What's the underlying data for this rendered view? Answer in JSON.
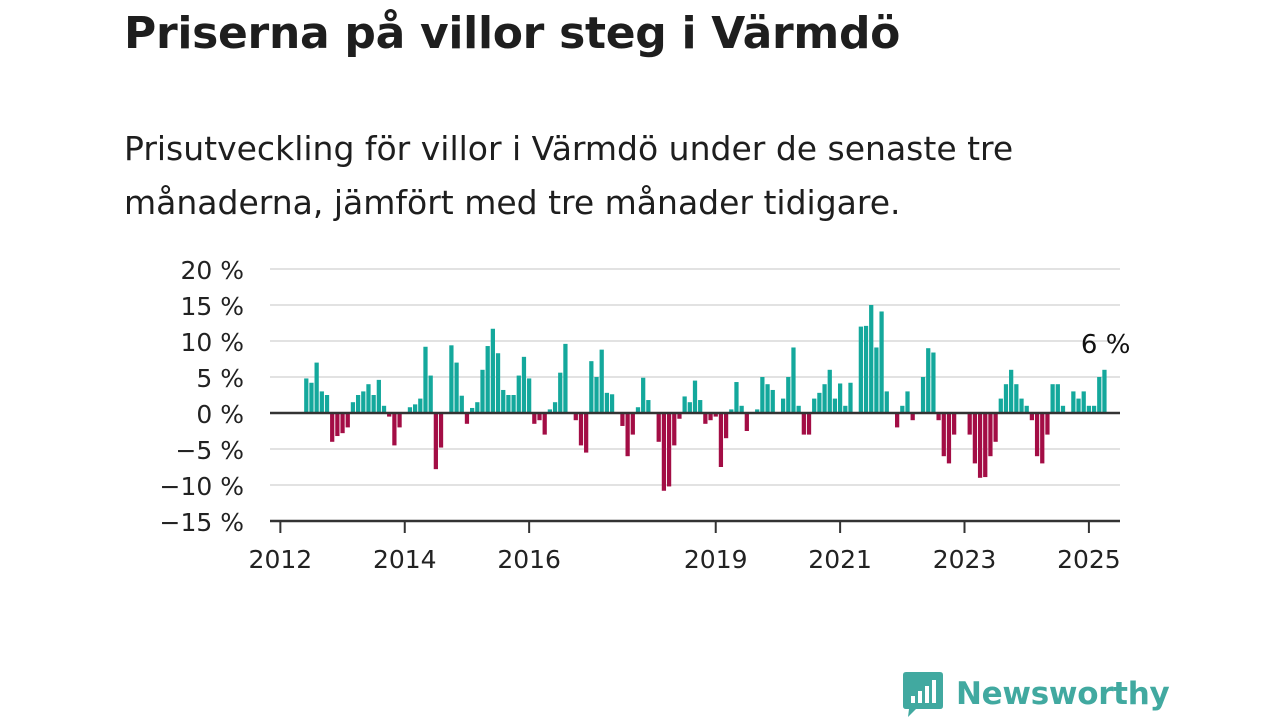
{
  "title": "Priserna på villor steg i Värmdö",
  "subtitle": "Prisutveckling för villor i Värmdö under de senaste tre månaderna, jämfört med tre månader tidigare.",
  "brand": {
    "name": "Newsworthy",
    "color": "#41a9a0",
    "logo_icon": "bar-chart-speech-bubble-icon"
  },
  "colors": {
    "positive": "#14a89c",
    "negative": "#a30d45",
    "grid": "#d9d9d9",
    "axis": "#333333"
  },
  "chart_data": {
    "type": "bar",
    "x_start": "2012-06",
    "x_step": "month",
    "xlim": [
      "2011-11",
      "2025-07"
    ],
    "ylim": [
      -15,
      20
    ],
    "y_ticks": [
      20,
      15,
      10,
      5,
      0,
      -5,
      -10,
      -15
    ],
    "y_tick_labels": [
      "20 %",
      "15 %",
      "10 %",
      "5 %",
      "0 %",
      "−5 %",
      "−10 %",
      "−15 %"
    ],
    "x_ticks": [
      "2012-01",
      "2014-01",
      "2016-01",
      "2019-01",
      "2021-01",
      "2023-01",
      "2025-01"
    ],
    "x_tick_labels": [
      "2012",
      "2014",
      "2016",
      "2019",
      "2021",
      "2023",
      "2025"
    ],
    "grid": true,
    "unit": "%",
    "values": [
      4.8,
      4.2,
      7.0,
      3.0,
      2.5,
      -4.0,
      -3.2,
      -2.8,
      -2.0,
      1.5,
      2.5,
      3.0,
      4.0,
      2.5,
      4.6,
      1.0,
      -0.5,
      -4.5,
      -2.0,
      0.0,
      0.8,
      1.2,
      2.0,
      9.2,
      5.2,
      -7.8,
      -4.8,
      0.0,
      9.4,
      7.0,
      2.4,
      -1.5,
      0.7,
      1.5,
      6.0,
      9.3,
      11.7,
      8.3,
      3.2,
      2.5,
      2.5,
      5.2,
      7.8,
      4.8,
      -1.5,
      -1.0,
      -3.0,
      0.5,
      1.5,
      5.6,
      9.6,
      0.0,
      -1.0,
      -4.5,
      -5.5,
      7.2,
      5.0,
      8.8,
      2.8,
      2.6,
      0.0,
      -1.8,
      -6.0,
      -3.0,
      0.8,
      4.9,
      1.8,
      0.0,
      -4.0,
      -10.8,
      -10.2,
      -4.5,
      -0.8,
      2.3,
      1.5,
      4.5,
      1.8,
      -1.5,
      -1.0,
      -0.5,
      -7.5,
      -3.5,
      0.5,
      4.3,
      1.0,
      -2.5,
      0.0,
      0.5,
      5.0,
      4.0,
      3.2,
      0.0,
      2.0,
      5.0,
      9.1,
      1.0,
      -3.0,
      -3.0,
      2.0,
      2.8,
      4.0,
      6.0,
      2.0,
      4.1,
      1.0,
      4.2,
      0.0,
      12.0,
      12.1,
      15.0,
      9.1,
      14.1,
      3.0,
      0.0,
      -2.0,
      1.0,
      3.0,
      -1.0,
      0.0,
      5.0,
      9.0,
      8.4,
      -1.0,
      -6.0,
      -7.0,
      -3.0,
      0.0,
      0.0,
      -3.0,
      -7.0,
      -9.0,
      -8.9,
      -6.0,
      -4.0,
      2.0,
      4.0,
      6.0,
      4.0,
      2.0,
      1.0,
      -1.0,
      -6.0,
      -7.0,
      -3.0,
      4.0,
      4.0,
      1.0,
      0.0,
      3.0,
      2.0,
      3.0,
      1.0,
      1.0,
      5.0,
      6.0
    ],
    "annotation": {
      "text": "6 %",
      "target": "last"
    }
  }
}
